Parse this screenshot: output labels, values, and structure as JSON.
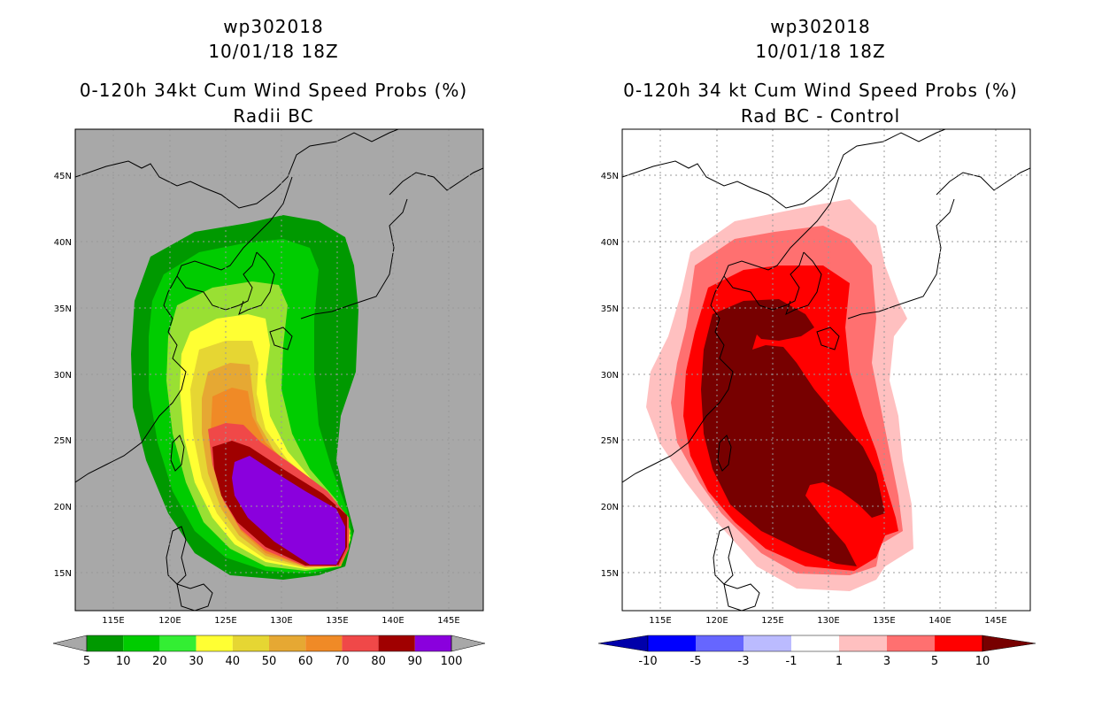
{
  "left_panel": {
    "storm_id": "wp302018",
    "datetime": "10/01/18 18Z",
    "title": "0-120h 34kt Cum Wind Speed Probs (%)",
    "subtitle": "Radii BC",
    "colorbar": {
      "labels": [
        "5",
        "10",
        "20",
        "30",
        "40",
        "50",
        "60",
        "70",
        "80",
        "90",
        "100"
      ],
      "colors": [
        "#009900",
        "#00cc00",
        "#33ee33",
        "#99e033",
        "#ffff33",
        "#e6d633",
        "#e6a833",
        "#f08a26",
        "#f04848",
        "#a00000",
        "#8a00dd"
      ]
    }
  },
  "right_panel": {
    "storm_id": "wp302018",
    "datetime": "10/01/18 18Z",
    "title": "0-120h 34 kt Cum Wind Speed Probs (%)",
    "subtitle": "Rad BC - Control",
    "colorbar": {
      "labels": [
        "-10",
        "-5",
        "-3",
        "-1",
        "1",
        "3",
        "5",
        "10"
      ],
      "colors": [
        "#0000aa",
        "#0000ff",
        "#6666ff",
        "#bbbbff",
        "#ffffff",
        "#ffc0c0",
        "#ff7070",
        "#ff0000",
        "#770000"
      ]
    }
  },
  "map_axes": {
    "lon_labels": [
      "115E",
      "120E",
      "125E",
      "130E",
      "135E",
      "140E",
      "145E"
    ],
    "lat_labels": [
      "15N",
      "20N",
      "25N",
      "30N",
      "35N",
      "40N",
      "45N"
    ]
  },
  "colors": {
    "ocean_gray": "#a8a8a8",
    "border": "#000000",
    "grid": "#999999"
  }
}
